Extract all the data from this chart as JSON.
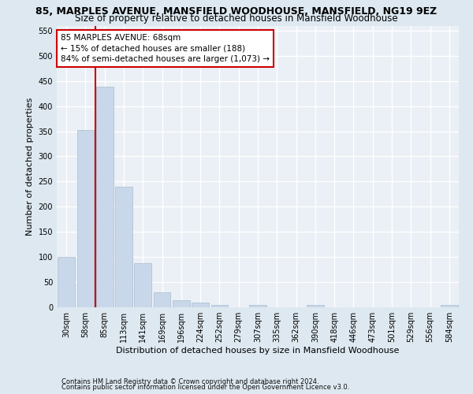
{
  "title_line1": "85, MARPLES AVENUE, MANSFIELD WOODHOUSE, MANSFIELD, NG19 9EZ",
  "title_line2": "Size of property relative to detached houses in Mansfield Woodhouse",
  "xlabel": "Distribution of detached houses by size in Mansfield Woodhouse",
  "ylabel": "Number of detached properties",
  "footer_line1": "Contains HM Land Registry data © Crown copyright and database right 2024.",
  "footer_line2": "Contains public sector information licensed under the Open Government Licence v3.0.",
  "bar_labels": [
    "30sqm",
    "58sqm",
    "85sqm",
    "113sqm",
    "141sqm",
    "169sqm",
    "196sqm",
    "224sqm",
    "252sqm",
    "279sqm",
    "307sqm",
    "335sqm",
    "362sqm",
    "390sqm",
    "418sqm",
    "446sqm",
    "473sqm",
    "501sqm",
    "529sqm",
    "556sqm",
    "584sqm"
  ],
  "bar_values": [
    100,
    353,
    438,
    240,
    88,
    29,
    14,
    9,
    5,
    0,
    5,
    0,
    0,
    5,
    0,
    0,
    0,
    0,
    0,
    0,
    5
  ],
  "bar_color": "#c8d8ea",
  "bar_edgecolor": "#aabccc",
  "vline_color": "#cc0000",
  "annotation_line1": "85 MARPLES AVENUE: 68sqm",
  "annotation_line2": "← 15% of detached houses are smaller (188)",
  "annotation_line3": "84% of semi-detached houses are larger (1,073) →",
  "annotation_box_facecolor": "white",
  "annotation_box_edgecolor": "#cc0000",
  "ylim_max": 560,
  "yticks": [
    0,
    50,
    100,
    150,
    200,
    250,
    300,
    350,
    400,
    450,
    500,
    550
  ],
  "fig_bg_color": "#dde8f0",
  "plot_bg_color": "#eaf0f6",
  "grid_color": "white",
  "title1_fontsize": 9,
  "title2_fontsize": 8.5,
  "axis_label_fontsize": 8,
  "tick_fontsize": 7,
  "annotation_fontsize": 7.5,
  "footer_fontsize": 6
}
